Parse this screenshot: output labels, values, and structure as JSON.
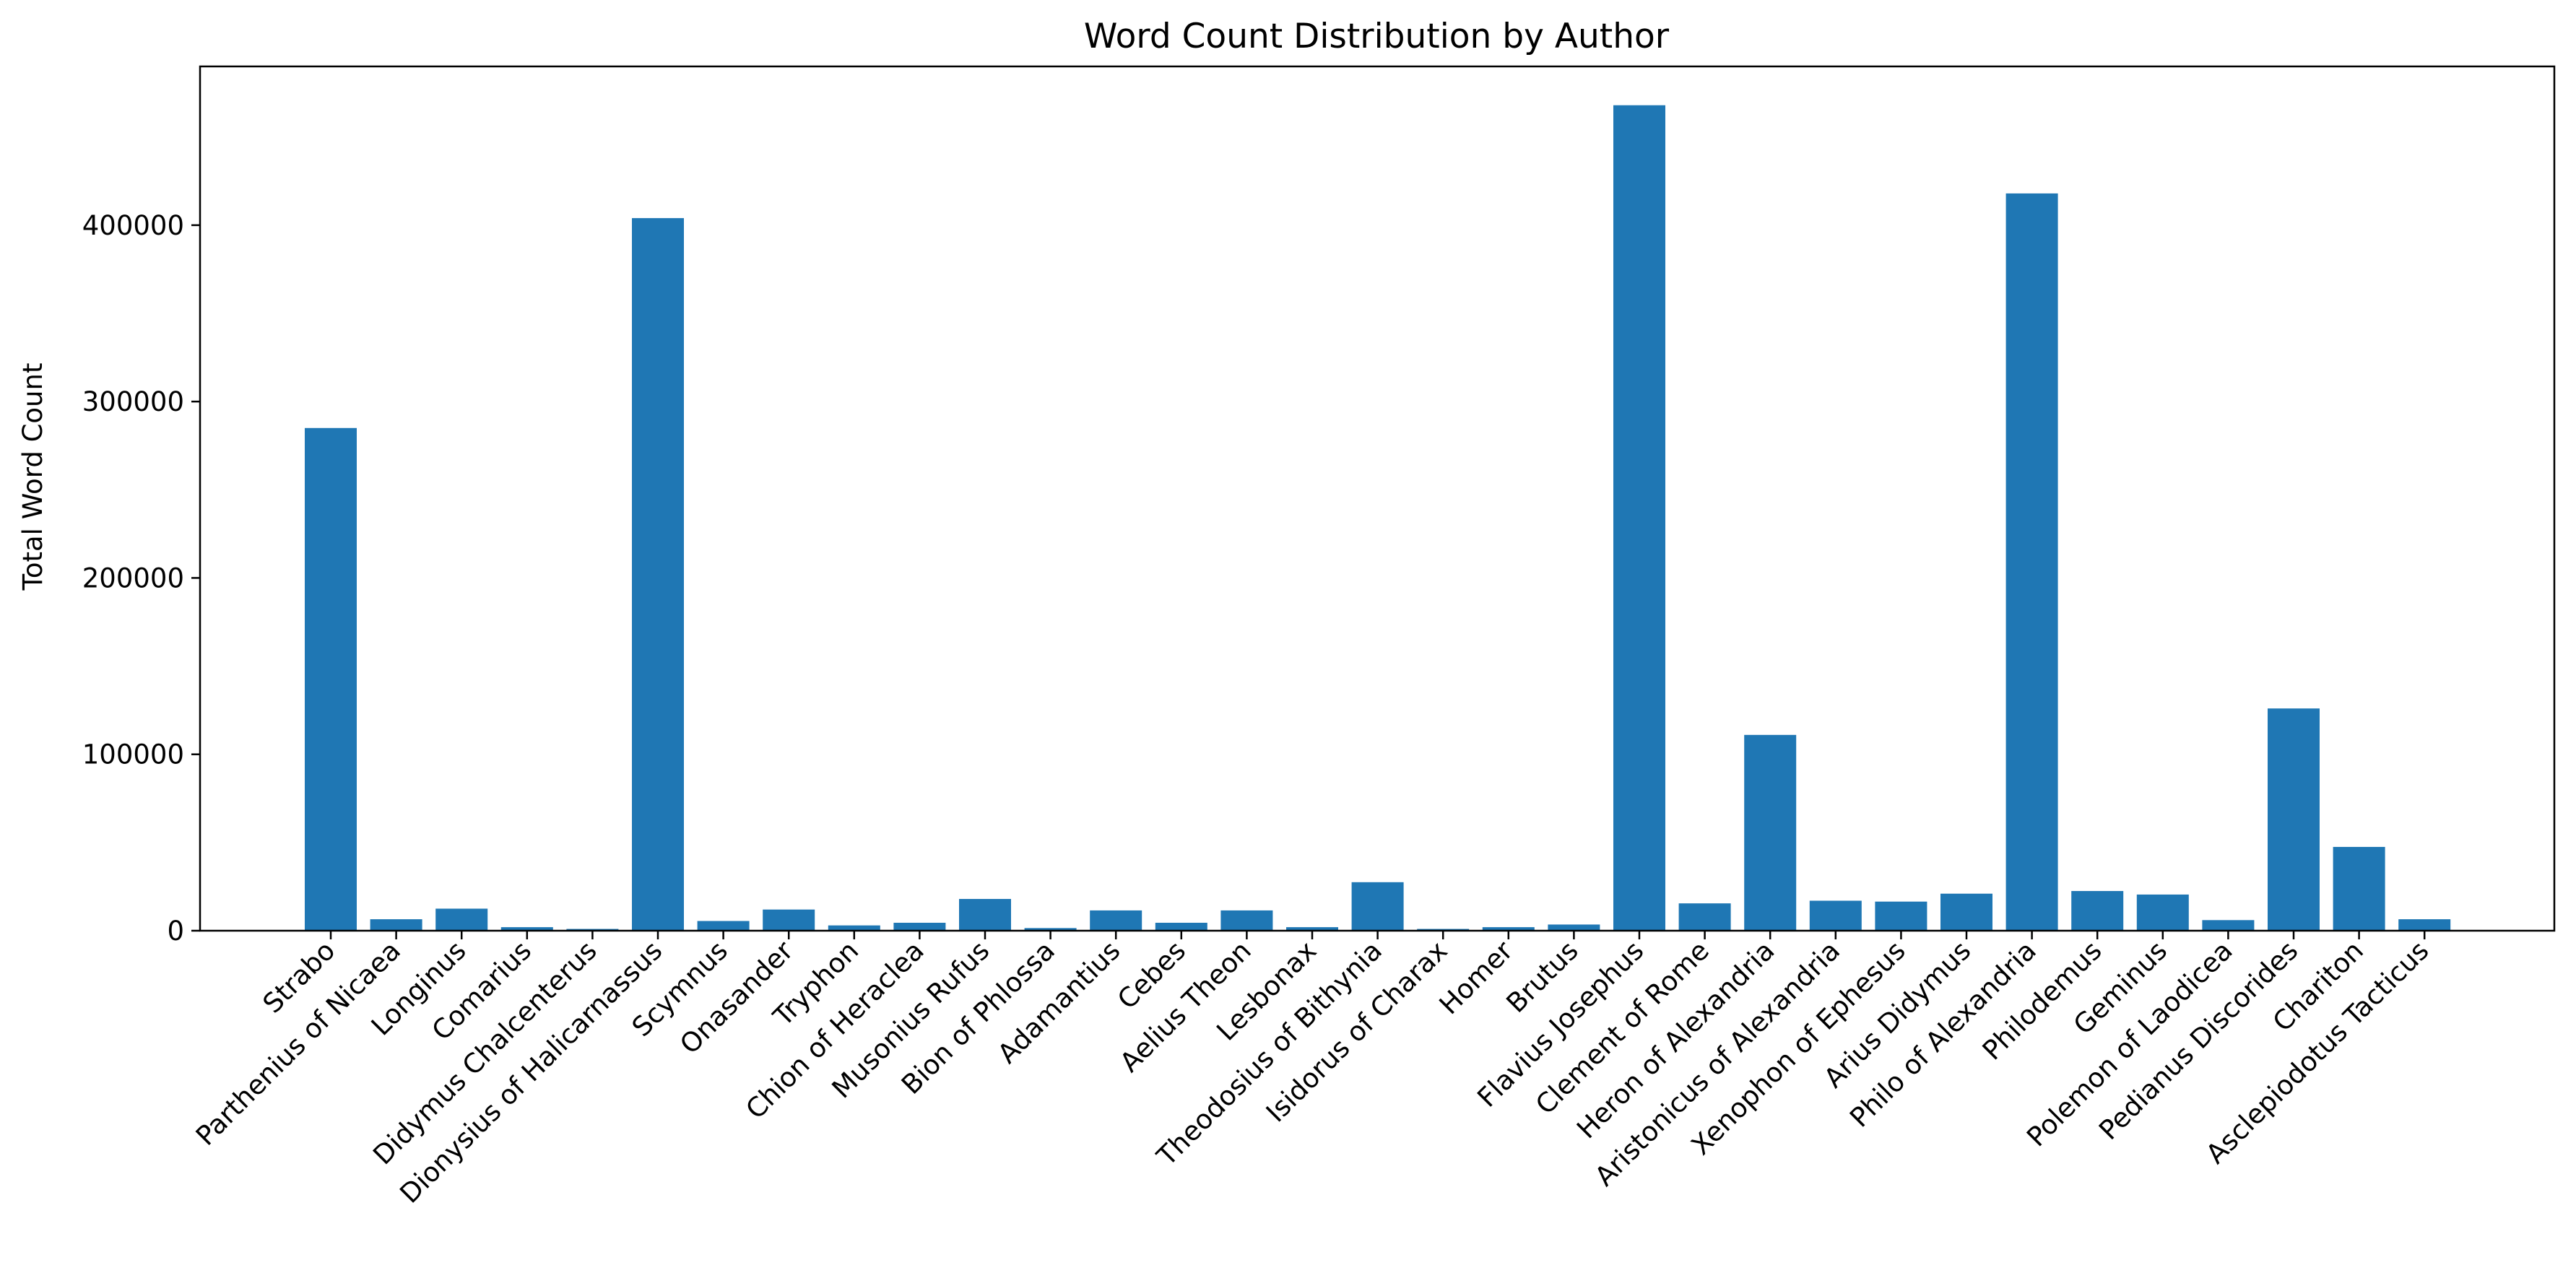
{
  "chart_data": {
    "type": "bar",
    "title": "Word Count Distribution by Author",
    "xlabel": "",
    "ylabel": "Total Word Count",
    "ylim": [
      0,
      490000
    ],
    "yticks": [
      0,
      100000,
      200000,
      300000,
      400000
    ],
    "color": "#1f77b4",
    "grid": false,
    "categories": [
      "Strabo",
      "Parthenius of Nicaea",
      "Longinus",
      "Comarius",
      "Didymus Chalcenterus",
      "Dionysius of Halicarnassus",
      "Scymnus",
      "Onasander",
      "Tryphon",
      "Chion of Heraclea",
      "Musonius Rufus",
      "Bion of Phlossa",
      "Adamantius",
      "Cebes",
      "Aelius Theon",
      "Lesbonax",
      "Theodosius of Bithynia",
      "Isidorus of Charax",
      "Homer",
      "Brutus",
      "Flavius Josephus",
      "Clement of Rome",
      "Heron of Alexandria",
      "Aristonicus of Alexandria",
      "Xenophon of Ephesus",
      "Arius Didymus",
      "Philo of Alexandria",
      "Philodemus",
      "Geminus",
      "Polemon of Laodicea",
      "Pedianus Discorides",
      "Chariton",
      "Asclepiodotus Tacticus"
    ],
    "values": [
      285000,
      6500,
      12500,
      2000,
      1000,
      404000,
      5500,
      12000,
      3000,
      4500,
      18000,
      1500,
      11500,
      4500,
      11500,
      2000,
      27500,
      1000,
      2000,
      3500,
      468000,
      15500,
      111000,
      17000,
      16500,
      21000,
      418000,
      22500,
      20500,
      6000,
      126000,
      47500,
      6500
    ]
  }
}
